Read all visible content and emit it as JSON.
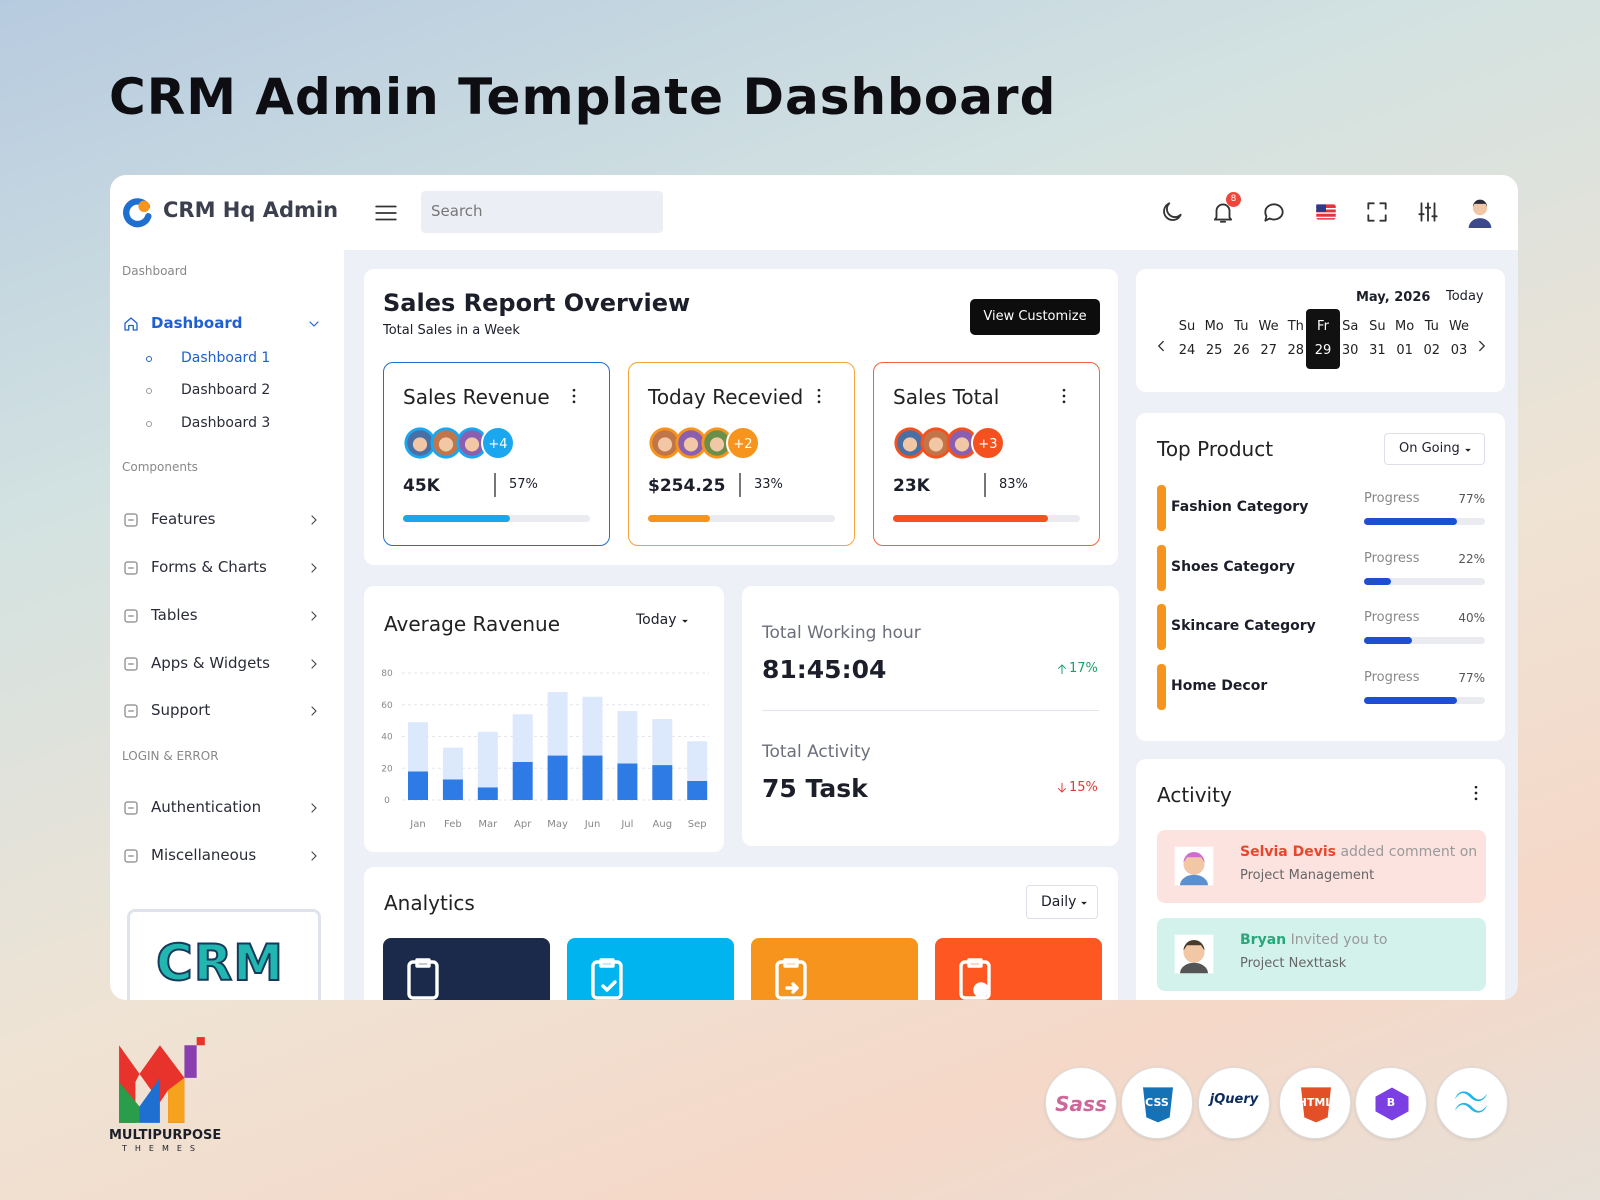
{
  "header": {
    "title": "CRM Admin Template Dashboard"
  },
  "app": {
    "brand": "CRM Hq Admin",
    "search_placeholder": "Search",
    "notification_count": 8
  },
  "sidebar": {
    "sections": [
      {
        "label": "Dashboard",
        "items": [
          {
            "label": "Dashboard",
            "children": [
              "Dashboard 1",
              "Dashboard 2",
              "Dashboard 3"
            ]
          }
        ]
      },
      {
        "label": "Components",
        "items": [
          {
            "label": "Features"
          },
          {
            "label": "Forms & Charts"
          },
          {
            "label": "Tables"
          },
          {
            "label": "Apps & Widgets"
          },
          {
            "label": "Support"
          }
        ]
      },
      {
        "label": "LOGIN & ERROR",
        "items": [
          {
            "label": "Authentication"
          },
          {
            "label": "Miscellaneous"
          }
        ]
      }
    ],
    "promo": "CRM"
  },
  "sales_report": {
    "title": "Sales Report Overview",
    "subtitle": "Total Sales in a Week",
    "button": "View Customize",
    "cards": [
      {
        "title": "Sales Revenue",
        "more": "+4",
        "value": "45K",
        "percent": {
          "value": 57,
          "label": "57%"
        },
        "color": "#1aa7f0",
        "border": "#1f6fd1"
      },
      {
        "title": "Today Recevied",
        "more": "+2",
        "value": "$254.25",
        "percent": {
          "value": 33,
          "label": "33%"
        },
        "color": "#f7941d",
        "border": "#f7a23a"
      },
      {
        "title": "Sales Total",
        "more": "+3",
        "value": "23K",
        "percent": {
          "value": 83,
          "label": "83%"
        },
        "color": "#f4511e",
        "border": "#f4643a"
      }
    ]
  },
  "chart_data": {
    "type": "bar",
    "stacked": true,
    "title": "Average Ravenue",
    "filter": "Today",
    "categories": [
      "Jan",
      "Feb",
      "Mar",
      "Apr",
      "May",
      "Jun",
      "Jul",
      "Aug",
      "Sep"
    ],
    "series": [
      {
        "color": "#2f7be6",
        "values": [
          18,
          13,
          8,
          24,
          28,
          28,
          23,
          22,
          12
        ]
      },
      {
        "color": "#dce8fb",
        "values": [
          31,
          20,
          35,
          30,
          40,
          37,
          33,
          29,
          25
        ]
      }
    ],
    "ylim": [
      0,
      80
    ],
    "yticks": [
      0,
      20,
      40,
      60,
      80
    ],
    "grid": true
  },
  "stats": [
    {
      "label": "Total Working hour",
      "value": "81:45:04",
      "change": "17%",
      "direction": "up"
    },
    {
      "label": "Total Activity",
      "value": "75 Task",
      "change": "15%",
      "direction": "down"
    }
  ],
  "analytics": {
    "title": "Analytics",
    "filter": "Daily",
    "tiles": [
      "#1b2a4a",
      "#00b4f0",
      "#f7941d",
      "#ff5722"
    ]
  },
  "calendar": {
    "month": "May, 2026",
    "today": "Today",
    "selected": 5,
    "days": [
      {
        "name": "Su",
        "date": "24"
      },
      {
        "name": "Mo",
        "date": "25"
      },
      {
        "name": "Tu",
        "date": "26"
      },
      {
        "name": "We",
        "date": "27"
      },
      {
        "name": "Th",
        "date": "28"
      },
      {
        "name": "Fr",
        "date": "29"
      },
      {
        "name": "Sa",
        "date": "30"
      },
      {
        "name": "Su",
        "date": "31"
      },
      {
        "name": "Mo",
        "date": "01"
      },
      {
        "name": "Tu",
        "date": "02"
      },
      {
        "name": "We",
        "date": "03"
      }
    ]
  },
  "top_product": {
    "title": "Top Product",
    "filter": "On Going",
    "progress_label": "Progress",
    "items": [
      {
        "name": "Fashion Category",
        "percent": {
          "value": 77,
          "label": "77%"
        }
      },
      {
        "name": "Shoes Category",
        "percent": {
          "value": 22,
          "label": "22%"
        }
      },
      {
        "name": "Skincare Category",
        "percent": {
          "value": 40,
          "label": "40%"
        }
      },
      {
        "name": "Home Decor",
        "percent": {
          "value": 77,
          "label": "77%"
        }
      }
    ]
  },
  "activity": {
    "title": "Activity",
    "entries": [
      {
        "name": "Selvia Devis",
        "text": "added comment on",
        "project": "Project Management",
        "bg": "#fde3df",
        "color": "#e8472c"
      },
      {
        "name": "Bryan",
        "text": "Invited you to",
        "project": "Project Nexttask",
        "bg": "#d4f2ec",
        "color": "#27a77a"
      }
    ]
  },
  "footer": {
    "brand": "MULTIPURPOSE",
    "brand_sub": "THEMES",
    "tech": [
      {
        "label": "Sass",
        "color": "#cd6799",
        "shape": "text"
      },
      {
        "label": "CSS",
        "color": "#1572b6",
        "shape": "shield"
      },
      {
        "label": "jQuery",
        "color": "#0b2b5b",
        "shape": "text"
      },
      {
        "label": "HTML",
        "color": "#e34f26",
        "shape": "shield"
      },
      {
        "label": "B",
        "color": "#7b3fe4",
        "shape": "box"
      }
    ]
  }
}
